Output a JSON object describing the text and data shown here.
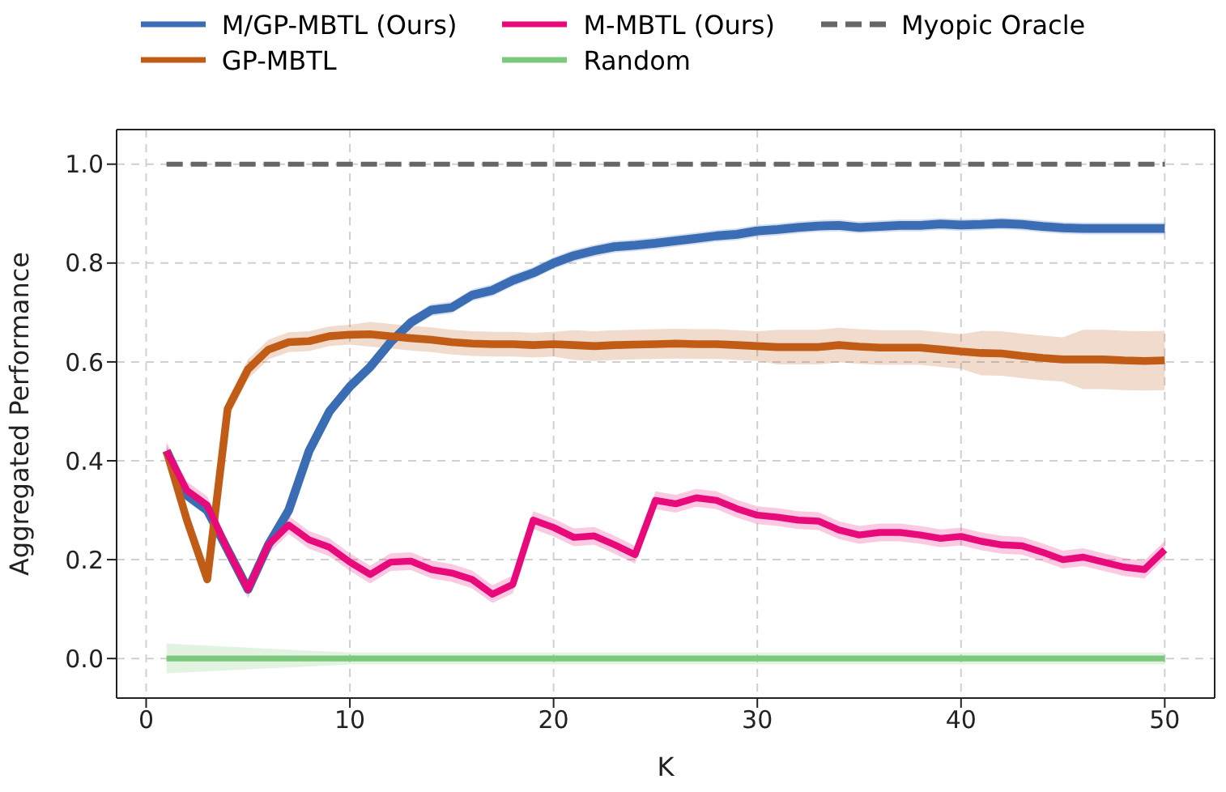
{
  "chart_data": {
    "type": "line",
    "xlabel": "K",
    "ylabel": "Aggregated Performance",
    "x": [
      1,
      2,
      3,
      4,
      5,
      6,
      7,
      8,
      9,
      10,
      11,
      12,
      13,
      14,
      15,
      16,
      17,
      18,
      19,
      20,
      21,
      22,
      23,
      24,
      25,
      26,
      27,
      28,
      29,
      30,
      31,
      32,
      33,
      34,
      35,
      36,
      37,
      38,
      39,
      40,
      41,
      42,
      43,
      44,
      45,
      46,
      47,
      48,
      49,
      50
    ],
    "xlim": [
      -1.45,
      52.45
    ],
    "xticks": [
      0,
      10,
      20,
      30,
      40,
      50
    ],
    "ylim": [
      -0.08,
      1.07
    ],
    "yticks": [
      {
        "value": 0,
        "label": "0.0"
      },
      {
        "value": 0.2,
        "label": "0.2"
      },
      {
        "value": 0.4,
        "label": "0.4"
      },
      {
        "value": 0.6,
        "label": "0.6"
      },
      {
        "value": 0.8,
        "label": "0.8"
      },
      {
        "value": 1,
        "label": "1.0"
      }
    ],
    "grid": true,
    "legend": "top",
    "line_style": "solid",
    "series": [
      {
        "name": "M/GP-MBTL (Ours)",
        "color": "#3a6db4",
        "values": [
          0.42,
          0.33,
          0.3,
          0.22,
          0.14,
          0.23,
          0.3,
          0.42,
          0.5,
          0.55,
          0.59,
          0.64,
          0.68,
          0.705,
          0.71,
          0.735,
          0.745,
          0.765,
          0.78,
          0.8,
          0.815,
          0.825,
          0.833,
          0.836,
          0.84,
          0.845,
          0.85,
          0.855,
          0.858,
          0.865,
          0.868,
          0.872,
          0.875,
          0.876,
          0.872,
          0.874,
          0.876,
          0.876,
          0.879,
          0.877,
          0.878,
          0.88,
          0.878,
          0.874,
          0.871,
          0.87,
          0.87,
          0.87,
          0.87,
          0.87
        ],
        "lower": [
          0.408,
          0.318,
          0.288,
          0.208,
          0.128,
          0.218,
          0.288,
          0.408,
          0.488,
          0.538,
          0.578,
          0.628,
          0.668,
          0.693,
          0.698,
          0.723,
          0.733,
          0.753,
          0.768,
          0.788,
          0.803,
          0.813,
          0.821,
          0.824,
          0.828,
          0.833,
          0.838,
          0.843,
          0.846,
          0.853,
          0.856,
          0.86,
          0.863,
          0.864,
          0.86,
          0.862,
          0.864,
          0.864,
          0.867,
          0.865,
          0.866,
          0.868,
          0.866,
          0.862,
          0.859,
          0.858,
          0.858,
          0.858,
          0.858,
          0.858
        ],
        "upper": [
          0.432,
          0.342,
          0.312,
          0.232,
          0.152,
          0.242,
          0.312,
          0.432,
          0.512,
          0.562,
          0.602,
          0.652,
          0.692,
          0.717,
          0.722,
          0.747,
          0.757,
          0.777,
          0.792,
          0.812,
          0.827,
          0.837,
          0.845,
          0.848,
          0.852,
          0.857,
          0.862,
          0.867,
          0.87,
          0.877,
          0.88,
          0.884,
          0.887,
          0.888,
          0.884,
          0.886,
          0.888,
          0.888,
          0.891,
          0.889,
          0.89,
          0.892,
          0.89,
          0.886,
          0.883,
          0.882,
          0.882,
          0.882,
          0.882,
          0.882
        ]
      },
      {
        "name": "GP-MBTL",
        "color": "#c15c17",
        "values": [
          0.42,
          0.28,
          0.16,
          0.505,
          0.585,
          0.625,
          0.64,
          0.642,
          0.652,
          0.655,
          0.656,
          0.652,
          0.648,
          0.645,
          0.64,
          0.637,
          0.636,
          0.636,
          0.634,
          0.636,
          0.634,
          0.632,
          0.634,
          0.635,
          0.636,
          0.637,
          0.636,
          0.636,
          0.634,
          0.632,
          0.63,
          0.63,
          0.63,
          0.634,
          0.631,
          0.629,
          0.629,
          0.629,
          0.625,
          0.621,
          0.618,
          0.617,
          0.612,
          0.608,
          0.605,
          0.605,
          0.605,
          0.603,
          0.602,
          0.603
        ],
        "lower": [
          0.41,
          0.27,
          0.15,
          0.485,
          0.565,
          0.605,
          0.62,
          0.622,
          0.632,
          0.635,
          0.631,
          0.627,
          0.623,
          0.62,
          0.615,
          0.612,
          0.611,
          0.611,
          0.609,
          0.611,
          0.604,
          0.602,
          0.604,
          0.605,
          0.606,
          0.607,
          0.606,
          0.606,
          0.604,
          0.602,
          0.595,
          0.595,
          0.595,
          0.599,
          0.596,
          0.594,
          0.594,
          0.594,
          0.59,
          0.586,
          0.573,
          0.572,
          0.567,
          0.563,
          0.56,
          0.545,
          0.545,
          0.543,
          0.542,
          0.543
        ],
        "upper": [
          0.43,
          0.29,
          0.17,
          0.525,
          0.605,
          0.645,
          0.66,
          0.662,
          0.672,
          0.675,
          0.681,
          0.677,
          0.673,
          0.67,
          0.665,
          0.662,
          0.661,
          0.661,
          0.659,
          0.661,
          0.664,
          0.662,
          0.664,
          0.665,
          0.666,
          0.667,
          0.666,
          0.666,
          0.664,
          0.662,
          0.665,
          0.665,
          0.665,
          0.669,
          0.666,
          0.664,
          0.664,
          0.664,
          0.66,
          0.656,
          0.663,
          0.662,
          0.657,
          0.653,
          0.65,
          0.665,
          0.665,
          0.663,
          0.662,
          0.663
        ]
      },
      {
        "name": "M-MBTL (Ours)",
        "color": "#e8097a",
        "values": [
          0.42,
          0.34,
          0.31,
          0.22,
          0.14,
          0.23,
          0.27,
          0.24,
          0.225,
          0.195,
          0.17,
          0.195,
          0.197,
          0.18,
          0.173,
          0.16,
          0.13,
          0.15,
          0.28,
          0.265,
          0.245,
          0.248,
          0.23,
          0.21,
          0.32,
          0.313,
          0.325,
          0.32,
          0.303,
          0.29,
          0.286,
          0.28,
          0.278,
          0.26,
          0.25,
          0.255,
          0.255,
          0.25,
          0.243,
          0.247,
          0.237,
          0.23,
          0.228,
          0.215,
          0.2,
          0.205,
          0.195,
          0.185,
          0.18,
          0.22
        ],
        "lower": [
          0.402,
          0.322,
          0.292,
          0.202,
          0.122,
          0.212,
          0.252,
          0.222,
          0.207,
          0.177,
          0.152,
          0.177,
          0.179,
          0.162,
          0.155,
          0.142,
          0.112,
          0.132,
          0.262,
          0.247,
          0.227,
          0.23,
          0.212,
          0.192,
          0.302,
          0.295,
          0.307,
          0.302,
          0.285,
          0.272,
          0.268,
          0.262,
          0.26,
          0.242,
          0.232,
          0.237,
          0.237,
          0.232,
          0.225,
          0.229,
          0.219,
          0.212,
          0.21,
          0.197,
          0.182,
          0.187,
          0.177,
          0.167,
          0.162,
          0.202
        ],
        "upper": [
          0.438,
          0.358,
          0.328,
          0.238,
          0.158,
          0.248,
          0.288,
          0.258,
          0.243,
          0.213,
          0.188,
          0.213,
          0.215,
          0.198,
          0.191,
          0.178,
          0.148,
          0.168,
          0.298,
          0.283,
          0.263,
          0.266,
          0.248,
          0.228,
          0.338,
          0.331,
          0.343,
          0.338,
          0.321,
          0.308,
          0.304,
          0.298,
          0.296,
          0.278,
          0.268,
          0.273,
          0.273,
          0.268,
          0.261,
          0.265,
          0.255,
          0.248,
          0.246,
          0.233,
          0.218,
          0.223,
          0.213,
          0.203,
          0.198,
          0.238
        ]
      },
      {
        "name": "Random",
        "color": "#7cc87c",
        "values": [
          0,
          0,
          0,
          0,
          0,
          0,
          0,
          0,
          0,
          0,
          0,
          0,
          0,
          0,
          0,
          0,
          0,
          0,
          0,
          0,
          0,
          0,
          0,
          0,
          0,
          0,
          0,
          0,
          0,
          0,
          0,
          0,
          0,
          0,
          0,
          0,
          0,
          0,
          0,
          0,
          0,
          0,
          0,
          0,
          0,
          0,
          0,
          0,
          0,
          0
        ],
        "lower": [
          -0.03,
          -0.028,
          -0.026,
          -0.024,
          -0.022,
          -0.02,
          -0.018,
          -0.016,
          -0.014,
          -0.012,
          -0.012,
          -0.012,
          -0.012,
          -0.012,
          -0.012,
          -0.012,
          -0.012,
          -0.012,
          -0.012,
          -0.012,
          -0.012,
          -0.012,
          -0.012,
          -0.012,
          -0.012,
          -0.012,
          -0.012,
          -0.012,
          -0.012,
          -0.012,
          -0.012,
          -0.012,
          -0.012,
          -0.012,
          -0.012,
          -0.012,
          -0.012,
          -0.012,
          -0.012,
          -0.012,
          -0.012,
          -0.012,
          -0.012,
          -0.012,
          -0.012,
          -0.012,
          -0.012,
          -0.012,
          -0.012,
          -0.012
        ],
        "upper": [
          0.03,
          0.028,
          0.026,
          0.024,
          0.022,
          0.02,
          0.018,
          0.016,
          0.014,
          0.012,
          0.012,
          0.012,
          0.012,
          0.012,
          0.012,
          0.012,
          0.012,
          0.012,
          0.012,
          0.012,
          0.012,
          0.012,
          0.012,
          0.012,
          0.012,
          0.012,
          0.012,
          0.012,
          0.012,
          0.012,
          0.012,
          0.012,
          0.012,
          0.012,
          0.012,
          0.012,
          0.012,
          0.012,
          0.012,
          0.012,
          0.012,
          0.012,
          0.012,
          0.012,
          0.012,
          0.012,
          0.012,
          0.012,
          0.012,
          0.012
        ]
      },
      {
        "name": "Myopic Oracle",
        "color": "#666666",
        "line_style": "dashed",
        "values": [
          1,
          1,
          1,
          1,
          1,
          1,
          1,
          1,
          1,
          1,
          1,
          1,
          1,
          1,
          1,
          1,
          1,
          1,
          1,
          1,
          1,
          1,
          1,
          1,
          1,
          1,
          1,
          1,
          1,
          1,
          1,
          1,
          1,
          1,
          1,
          1,
          1,
          1,
          1,
          1,
          1,
          1,
          1,
          1,
          1,
          1,
          1,
          1,
          1,
          1
        ]
      }
    ]
  }
}
